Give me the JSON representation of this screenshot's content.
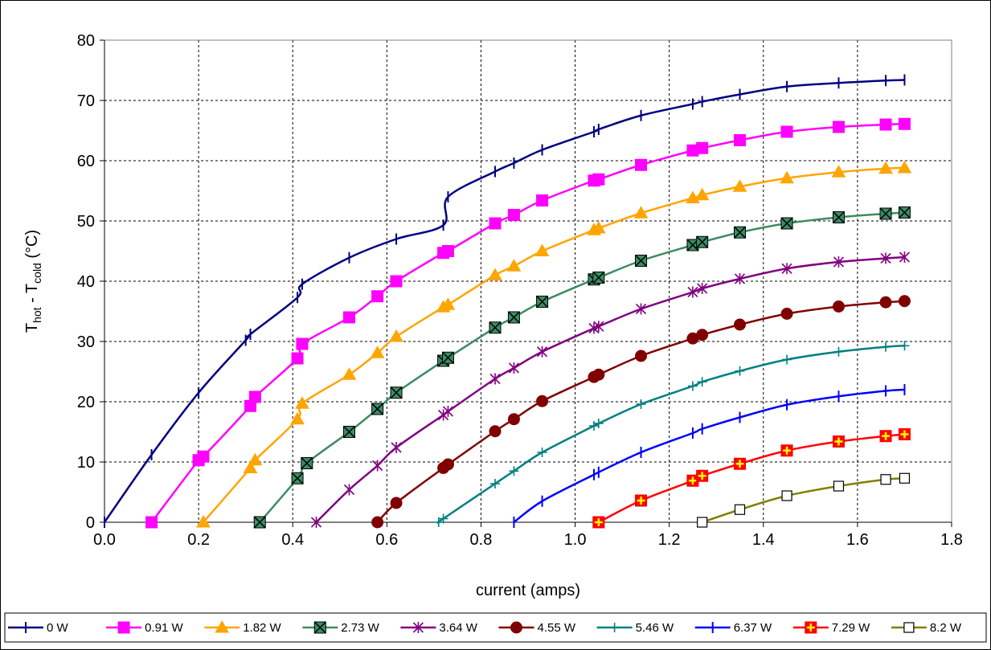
{
  "chart_data": {
    "type": "line",
    "title": "",
    "xlabel": "current (amps)",
    "ylabel": {
      "prefix": "T",
      "sub1": "hot",
      "middle": " - T",
      "sub2": "cold",
      "suffix": " (°C)"
    },
    "xlim": [
      0,
      1.8
    ],
    "ylim": [
      0,
      80
    ],
    "xticks": [
      "0.0",
      "0.2",
      "0.4",
      "0.6",
      "0.8",
      "1.0",
      "1.2",
      "1.4",
      "1.6",
      "1.8"
    ],
    "yticks": [
      "0",
      "10",
      "20",
      "30",
      "40",
      "50",
      "60",
      "70",
      "80"
    ],
    "grid": "dashed",
    "legend_position": "bottom",
    "series": [
      {
        "name": "0 W",
        "color": "#000080",
        "marker": "dash",
        "x": [
          0,
          0.1,
          0.2,
          0.3,
          0.31,
          0.41,
          0.42,
          0.52,
          0.62,
          0.72,
          0.73,
          0.83,
          0.87,
          0.93,
          1.04,
          1.05,
          1.14,
          1.25,
          1.27,
          1.35,
          1.45,
          1.56,
          1.66,
          1.7
        ],
        "y": [
          0,
          11.2,
          21.5,
          30.2,
          31.2,
          37.3,
          39.5,
          43.9,
          47.0,
          49.3,
          54.0,
          58.2,
          59.6,
          61.8,
          64.8,
          65.2,
          67.5,
          69.4,
          69.8,
          71.0,
          72.3,
          72.9,
          73.3,
          73.4
        ]
      },
      {
        "name": "0.91 W",
        "color": "#FF00FF",
        "marker": "square",
        "x": [
          0.1,
          0.2,
          0.21,
          0.31,
          0.32,
          0.41,
          0.42,
          0.52,
          0.58,
          0.62,
          0.72,
          0.73,
          0.83,
          0.87,
          0.93,
          1.04,
          1.05,
          1.14,
          1.25,
          1.27,
          1.35,
          1.45,
          1.56,
          1.66,
          1.7
        ],
        "y": [
          0,
          10.3,
          10.9,
          19.3,
          20.8,
          27.2,
          29.6,
          34.0,
          37.5,
          40.0,
          44.7,
          45.0,
          49.6,
          51.0,
          53.4,
          56.7,
          56.9,
          59.3,
          61.7,
          62.1,
          63.4,
          64.8,
          65.6,
          66.0,
          66.1
        ]
      },
      {
        "name": "1.82 W",
        "color": "#FFA500",
        "marker": "triangle",
        "x": [
          0.21,
          0.31,
          0.32,
          0.41,
          0.42,
          0.52,
          0.58,
          0.62,
          0.72,
          0.73,
          0.83,
          0.87,
          0.93,
          1.04,
          1.05,
          1.14,
          1.25,
          1.27,
          1.35,
          1.45,
          1.56,
          1.66,
          1.7
        ],
        "y": [
          0,
          9.0,
          10.3,
          17.1,
          19.7,
          24.5,
          28.1,
          30.8,
          35.7,
          36.1,
          41.0,
          42.5,
          45.0,
          48.5,
          48.8,
          51.3,
          53.8,
          54.3,
          55.7,
          57.1,
          58.1,
          58.7,
          58.8
        ]
      },
      {
        "name": "2.73 W",
        "color": "#3C8C64",
        "marker": "square-x",
        "x": [
          0.33,
          0.41,
          0.43,
          0.52,
          0.58,
          0.62,
          0.72,
          0.73,
          0.83,
          0.87,
          0.93,
          1.04,
          1.05,
          1.14,
          1.25,
          1.27,
          1.35,
          1.45,
          1.56,
          1.66,
          1.7
        ],
        "y": [
          0,
          7.3,
          9.8,
          15.0,
          18.8,
          21.5,
          26.8,
          27.3,
          32.3,
          34.0,
          36.6,
          40.3,
          40.6,
          43.4,
          46.0,
          46.5,
          48.1,
          49.6,
          50.6,
          51.2,
          51.4
        ]
      },
      {
        "name": "3.64 W",
        "color": "#800080",
        "marker": "asterisk",
        "x": [
          0.45,
          0.52,
          0.58,
          0.62,
          0.72,
          0.73,
          0.83,
          0.87,
          0.93,
          1.04,
          1.05,
          1.14,
          1.25,
          1.27,
          1.35,
          1.45,
          1.56,
          1.66,
          1.7
        ],
        "y": [
          0,
          5.4,
          9.4,
          12.4,
          17.8,
          18.4,
          23.8,
          25.6,
          28.3,
          32.2,
          32.5,
          35.4,
          38.2,
          38.8,
          40.4,
          42.1,
          43.2,
          43.8,
          44.0
        ]
      },
      {
        "name": "4.55 W",
        "color": "#800000",
        "marker": "circle",
        "x": [
          0.58,
          0.62,
          0.72,
          0.73,
          0.83,
          0.87,
          0.93,
          1.04,
          1.05,
          1.14,
          1.25,
          1.27,
          1.35,
          1.45,
          1.56,
          1.66,
          1.7
        ],
        "y": [
          0,
          3.2,
          9.0,
          9.6,
          15.1,
          17.1,
          20.1,
          24.1,
          24.5,
          27.6,
          30.5,
          31.1,
          32.8,
          34.6,
          35.8,
          36.5,
          36.7
        ]
      },
      {
        "name": "5.46 W",
        "color": "#008080",
        "marker": "plus",
        "x": [
          0.71,
          0.72,
          0.83,
          0.87,
          0.93,
          1.04,
          1.05,
          1.14,
          1.25,
          1.27,
          1.35,
          1.45,
          1.56,
          1.66,
          1.7
        ],
        "y": [
          0,
          0.6,
          6.4,
          8.5,
          11.6,
          16.0,
          16.4,
          19.6,
          22.6,
          23.3,
          25.1,
          27.0,
          28.3,
          29.1,
          29.3
        ]
      },
      {
        "name": "6.37 W",
        "color": "#0000FF",
        "marker": "dash",
        "x": [
          0.87,
          0.93,
          1.04,
          1.05,
          1.14,
          1.25,
          1.27,
          1.35,
          1.45,
          1.56,
          1.66,
          1.7
        ],
        "y": [
          0,
          3.5,
          7.9,
          8.3,
          11.6,
          14.8,
          15.5,
          17.4,
          19.5,
          20.9,
          21.8,
          22.0
        ]
      },
      {
        "name": "7.29 W",
        "color": "#FF0000",
        "marker": "square-plus",
        "x": [
          1.05,
          1.14,
          1.25,
          1.27,
          1.35,
          1.45,
          1.56,
          1.66,
          1.7
        ],
        "y": [
          0,
          3.6,
          6.9,
          7.7,
          9.7,
          11.9,
          13.4,
          14.3,
          14.6
        ]
      },
      {
        "name": "8.2 W",
        "color": "#808000",
        "marker": "open-square",
        "x": [
          1.27,
          1.35,
          1.45,
          1.56,
          1.66,
          1.7
        ],
        "y": [
          0,
          2.1,
          4.4,
          6.0,
          7.1,
          7.3
        ]
      }
    ]
  }
}
